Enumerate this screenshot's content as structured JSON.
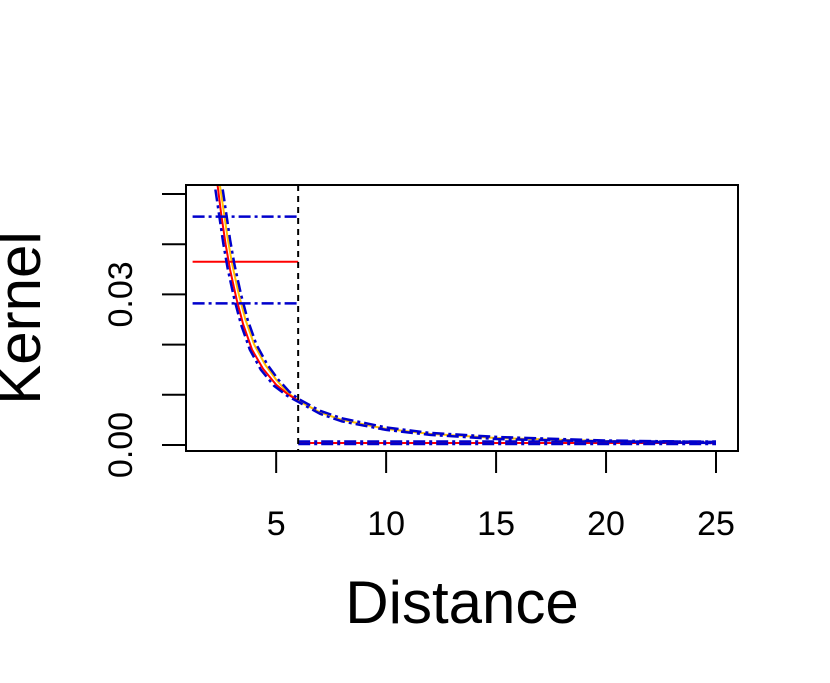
{
  "chart_data": {
    "type": "line",
    "title": "",
    "xlabel": "Distance",
    "ylabel": "Kernel",
    "xlim": [
      0.9,
      26
    ],
    "ylim": [
      -0.0012,
      0.0518
    ],
    "x_ticks": [
      5,
      10,
      15,
      20,
      25
    ],
    "x_tick_labels": [
      "5",
      "10",
      "15",
      "20",
      "25"
    ],
    "y_ticks": [
      0.0,
      0.01,
      0.02,
      0.03,
      0.04,
      0.05
    ],
    "y_tick_labels": [
      "0.00",
      "",
      "",
      "0.03",
      "",
      ""
    ],
    "grid": false,
    "legend": "none",
    "reference_line": {
      "x": 6,
      "style": "dashed",
      "color": "#000000"
    },
    "series": [
      {
        "color": "#FFC000",
        "style": "solid",
        "x": [
          2.2,
          2.4,
          2.6,
          2.8,
          3.0,
          3.3,
          3.6,
          4.0,
          4.5,
          5.0,
          5.5,
          6.0,
          7,
          8,
          10,
          12,
          15,
          20,
          25
        ],
        "y": [
          0.06,
          0.053,
          0.047,
          0.041,
          0.036,
          0.03,
          0.025,
          0.02,
          0.016,
          0.013,
          0.0105,
          0.0088,
          0.0065,
          0.005,
          0.0032,
          0.0022,
          0.0014,
          0.0008,
          0.0005
        ]
      },
      {
        "color": "#FF0000",
        "style": "solid",
        "x": [
          2.1,
          2.3,
          2.5,
          2.7,
          2.9,
          3.2,
          3.5,
          3.9,
          4.4,
          5.0,
          5.5,
          6.0
        ],
        "y": [
          0.06,
          0.053,
          0.046,
          0.04,
          0.035,
          0.029,
          0.024,
          0.019,
          0.0152,
          0.012,
          0.0102,
          0.0088
        ]
      },
      {
        "color": "#FF0000",
        "style": "solid",
        "x": [
          1.2,
          6.0
        ],
        "y": [
          0.0365,
          0.0365
        ]
      },
      {
        "color": "#FF0000",
        "style": "solid",
        "x": [
          6.0,
          25
        ],
        "y": [
          0.0004,
          0.0004
        ]
      },
      {
        "color": "#0000CC",
        "style": "dashdot",
        "x": [
          1.2,
          6.0
        ],
        "y": [
          0.0455,
          0.0455
        ]
      },
      {
        "color": "#0000CC",
        "style": "dashdot",
        "x": [
          1.2,
          6.0
        ],
        "y": [
          0.0282,
          0.0282
        ]
      },
      {
        "color": "#0000CC",
        "style": "dashdot",
        "x": [
          2.3,
          2.5,
          2.7,
          2.9,
          3.1,
          3.4,
          3.7,
          4.1,
          4.6,
          5.1,
          5.6,
          6.0,
          7,
          8,
          10,
          12,
          15,
          20,
          25
        ],
        "y": [
          0.06,
          0.053,
          0.047,
          0.041,
          0.036,
          0.03,
          0.025,
          0.02,
          0.016,
          0.013,
          0.0106,
          0.0092,
          0.0068,
          0.0053,
          0.0035,
          0.0024,
          0.0016,
          0.0009,
          0.0006
        ]
      },
      {
        "color": "#0000CC",
        "style": "dashdot",
        "x": [
          2.0,
          2.2,
          2.4,
          2.6,
          2.8,
          3.1,
          3.4,
          3.8,
          4.3,
          4.9,
          5.5,
          6.0,
          7,
          8,
          10,
          12,
          15,
          20,
          25
        ],
        "y": [
          0.06,
          0.052,
          0.046,
          0.04,
          0.035,
          0.029,
          0.024,
          0.019,
          0.015,
          0.0118,
          0.0098,
          0.0086,
          0.0062,
          0.0047,
          0.003,
          0.002,
          0.0012,
          0.0007,
          0.0004
        ]
      },
      {
        "color": "#0000CC",
        "style": "dashdot",
        "x": [
          6.0,
          25
        ],
        "y": [
          0.0007,
          0.0007
        ]
      },
      {
        "color": "#0000CC",
        "style": "dashdot",
        "x": [
          6.0,
          25
        ],
        "y": [
          0.0002,
          0.0002
        ]
      }
    ]
  }
}
